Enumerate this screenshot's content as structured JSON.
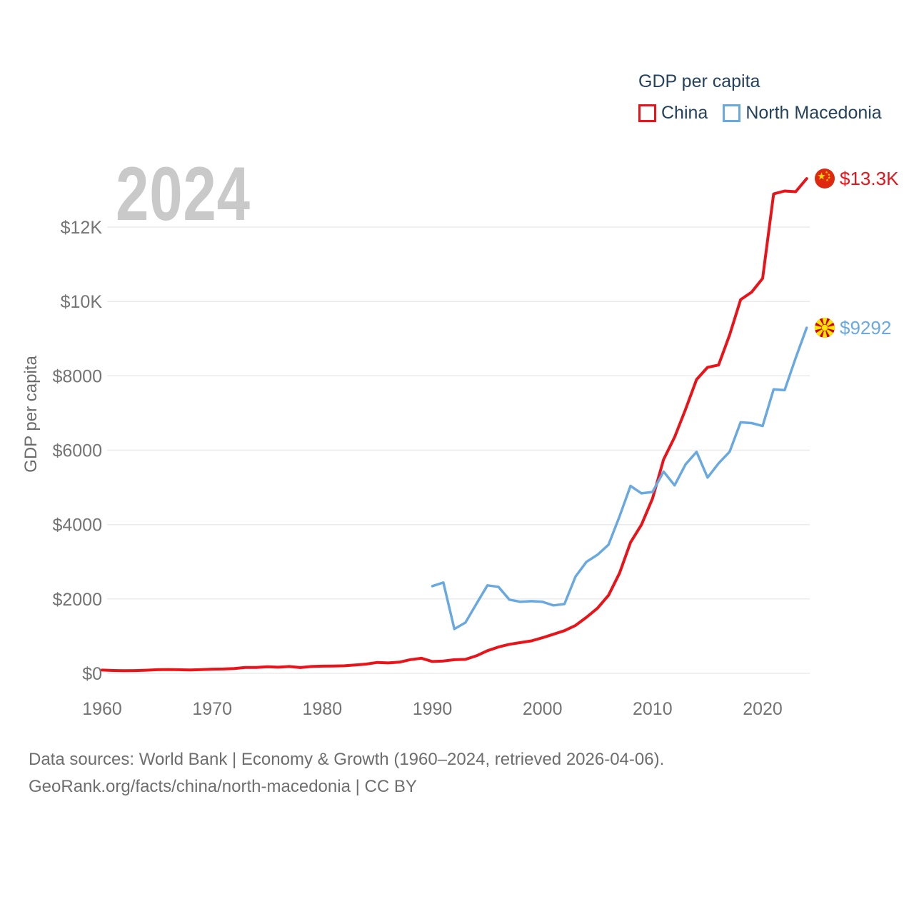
{
  "watermark": {
    "year": "2024"
  },
  "footer": {
    "line1": "Data sources: World Bank | Economy & Growth (1960–2024, retrieved 2026-04-06).",
    "line2": "GeoRank.org/facts/china/north-macedonia | CC BY"
  },
  "chart_data": {
    "type": "line",
    "title": "GDP per capita",
    "xlabel": "",
    "ylabel": "GDP per capita",
    "xlim": [
      1960,
      2024
    ],
    "ylim": [
      0,
      13500
    ],
    "grid": "horizontal",
    "legend_position": "top-right",
    "x_ticks": [
      {
        "v": 1960,
        "label": "1960"
      },
      {
        "v": 1970,
        "label": "1970"
      },
      {
        "v": 1980,
        "label": "1980"
      },
      {
        "v": 1990,
        "label": "1990"
      },
      {
        "v": 2000,
        "label": "2000"
      },
      {
        "v": 2010,
        "label": "2010"
      },
      {
        "v": 2020,
        "label": "2020"
      }
    ],
    "y_ticks": [
      {
        "v": 0,
        "label": "$0"
      },
      {
        "v": 2000,
        "label": "$2000"
      },
      {
        "v": 4000,
        "label": "$4000"
      },
      {
        "v": 6000,
        "label": "$6000"
      },
      {
        "v": 8000,
        "label": "$8000"
      },
      {
        "v": 10000,
        "label": "$10K"
      },
      {
        "v": 12000,
        "label": "$12K"
      }
    ],
    "series": [
      {
        "name": "China",
        "color": "#e8141a",
        "width": 4,
        "start_year": 1960,
        "end_label": "$13.3K",
        "flag": "china-flag-icon",
        "values": [
          89,
          76,
          71,
          74,
          85,
          98,
          104,
          97,
          91,
          100,
          113,
          118,
          131,
          157,
          160,
          178,
          165,
          185,
          156,
          184,
          194,
          197,
          203,
          225,
          250,
          294,
          281,
          301,
          369,
          407,
          318,
          333,
          366,
          377,
          473,
          609,
          709,
          781,
          828,
          873,
          959,
          1053,
          1148,
          1288,
          1508,
          1753,
          2099,
          2693,
          3520,
          4000,
          4700,
          5750,
          6350,
          7100,
          7900,
          8230,
          8290,
          9100,
          10050,
          10250,
          10620,
          12890,
          12970,
          12950,
          13303
        ]
      },
      {
        "name": "North Macedonia",
        "color": "#6aa9e0",
        "width": 3.5,
        "start_year": 1990,
        "end_label": "$9292",
        "flag": "north-macedonia-flag-icon",
        "values": [
          2347,
          2442,
          1192,
          1365,
          1870,
          2365,
          2327,
          1981,
          1923,
          1942,
          1923,
          1827,
          1865,
          2600,
          3000,
          3190,
          3460,
          4220,
          5040,
          4840,
          4877,
          5425,
          5055,
          5620,
          5955,
          5264,
          5647,
          5960,
          6750,
          6730,
          6650,
          7635,
          7615,
          8480,
          9292
        ]
      }
    ]
  }
}
